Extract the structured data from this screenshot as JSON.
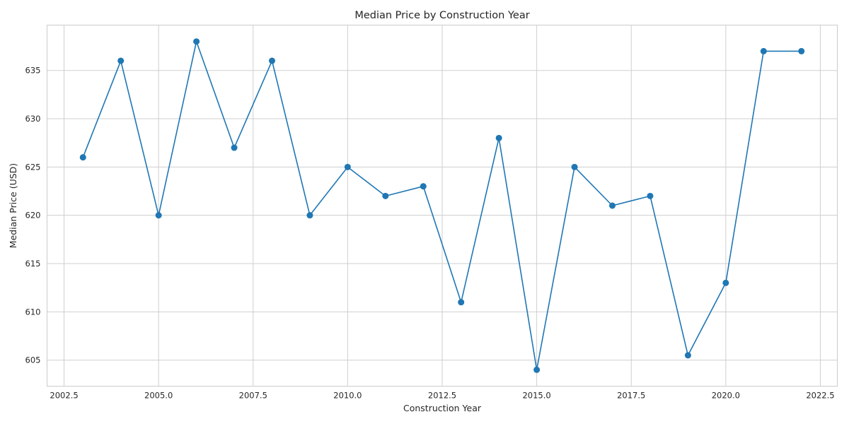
{
  "chart_data": {
    "type": "line",
    "title": "Median Price by Construction Year",
    "xlabel": "Construction Year",
    "ylabel": "Median Price (USD)",
    "xlim": [
      2002.05,
      2022.95
    ],
    "ylim": [
      602.3,
      639.7
    ],
    "xticks": [
      2002.5,
      2005.0,
      2007.5,
      2010.0,
      2012.5,
      2015.0,
      2017.5,
      2020.0,
      2022.5
    ],
    "xtick_labels": [
      "2002.5",
      "2005.0",
      "2007.5",
      "2010.0",
      "2012.5",
      "2015.0",
      "2017.5",
      "2020.0",
      "2022.5"
    ],
    "yticks": [
      605,
      610,
      615,
      620,
      625,
      630,
      635
    ],
    "ytick_labels": [
      "605",
      "610",
      "615",
      "620",
      "625",
      "630",
      "635"
    ],
    "grid": true,
    "color": "#1f77b4",
    "series": [
      {
        "x": [
          2003,
          2004,
          2005,
          2006,
          2007,
          2008,
          2009,
          2010,
          2011,
          2012,
          2013,
          2014,
          2015,
          2016,
          2017,
          2018,
          2019,
          2020,
          2021,
          2022
        ],
        "values": [
          626,
          636,
          620,
          638,
          627,
          636,
          620,
          625,
          622,
          623,
          611,
          628,
          604,
          625,
          621,
          622,
          605.5,
          613,
          637,
          637
        ]
      }
    ]
  }
}
